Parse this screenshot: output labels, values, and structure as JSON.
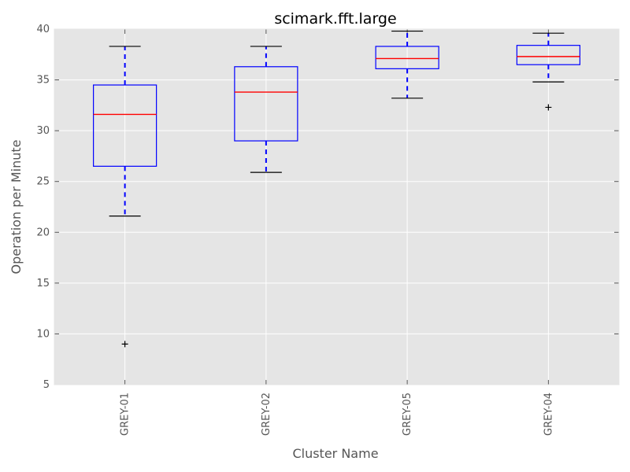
{
  "chart_data": {
    "type": "box",
    "title": "scimark.fft.large",
    "xlabel": "Cluster Name",
    "ylabel": "Operation per Minute",
    "ylim": [
      5,
      40
    ],
    "yticks": [
      5,
      10,
      15,
      20,
      25,
      30,
      35,
      40
    ],
    "grid": true,
    "categories": [
      "GREY-01",
      "GREY-02",
      "GREY-05",
      "GREY-04"
    ],
    "boxes": [
      {
        "category": "GREY-01",
        "whisker_low": 21.6,
        "q1": 26.5,
        "median": 31.6,
        "q3": 34.5,
        "whisker_high": 38.3,
        "outliers": [
          9.0
        ]
      },
      {
        "category": "GREY-02",
        "whisker_low": 25.9,
        "q1": 29.0,
        "median": 33.8,
        "q3": 36.3,
        "whisker_high": 38.3,
        "outliers": []
      },
      {
        "category": "GREY-05",
        "whisker_low": 33.2,
        "q1": 36.1,
        "median": 37.1,
        "q3": 38.3,
        "whisker_high": 39.8,
        "outliers": []
      },
      {
        "category": "GREY-04",
        "whisker_low": 34.8,
        "q1": 36.5,
        "median": 37.3,
        "q3": 38.4,
        "whisker_high": 39.6,
        "outliers": [
          32.3
        ]
      }
    ],
    "colors": {
      "plot_background": "#e5e5e5",
      "grid": "#ffffff",
      "box": "#0000ff",
      "median": "#ff0000",
      "cap": "#000000",
      "outlier": "#000000",
      "tick_label": "#555555"
    }
  }
}
